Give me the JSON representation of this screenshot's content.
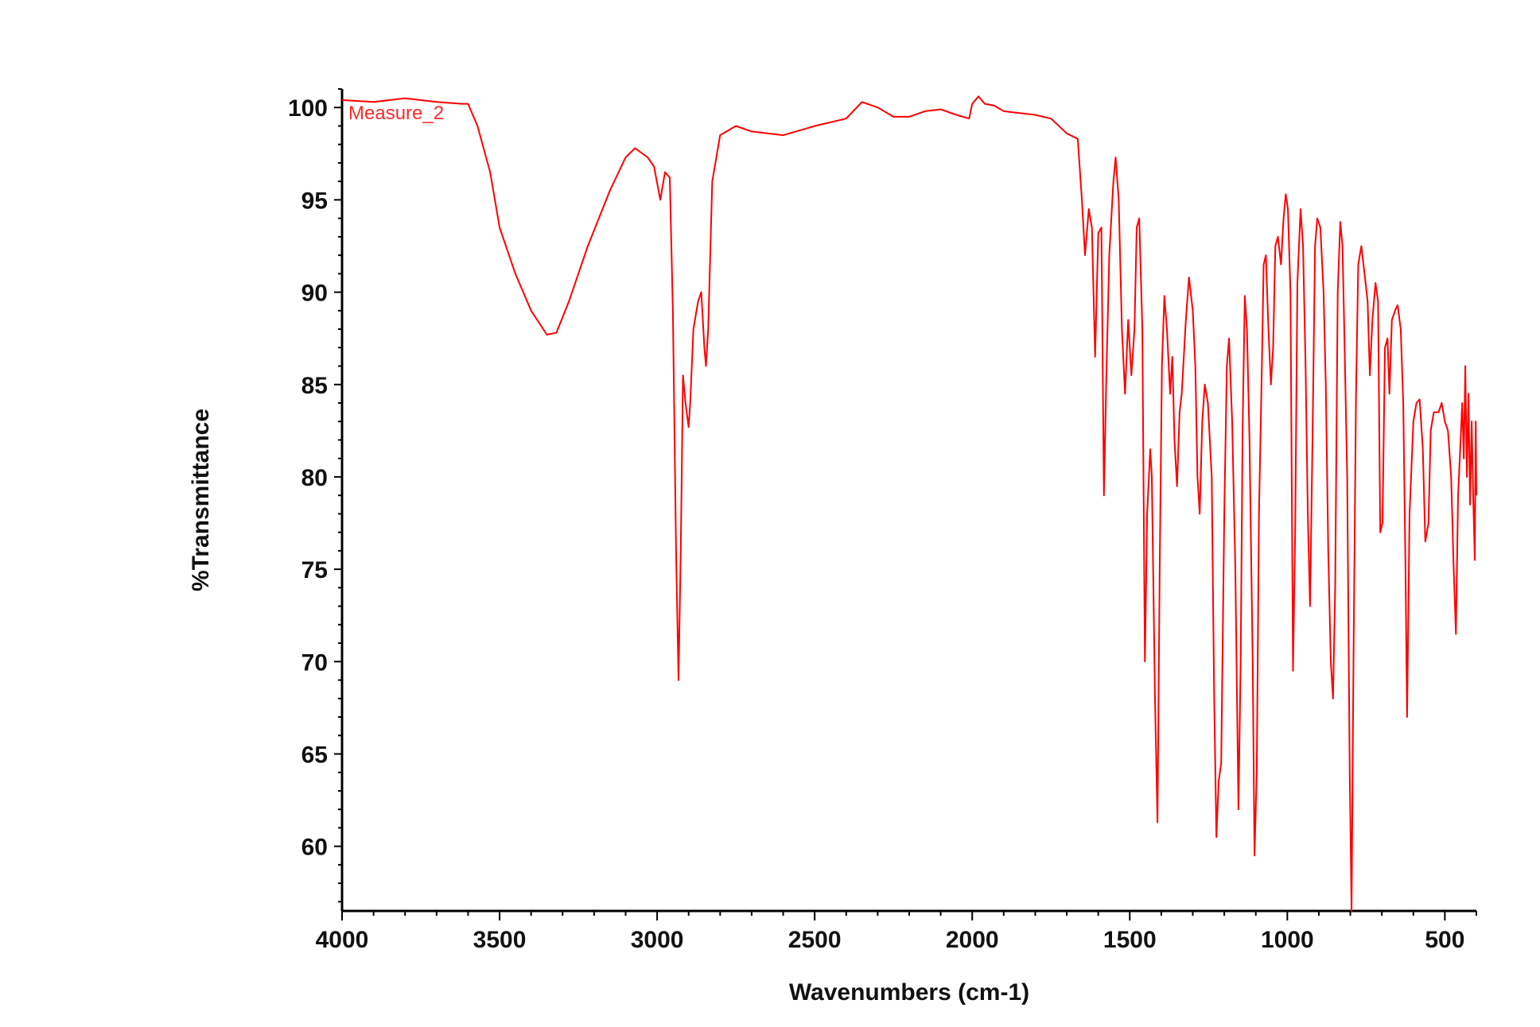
{
  "chart_data": {
    "type": "line",
    "title": "",
    "xlabel": "Wavenumbers (cm-1)",
    "ylabel": "%Transmittance",
    "xlim": [
      4000,
      400
    ],
    "ylim": [
      56.5,
      101
    ],
    "x_reversed": true,
    "x_ticks": [
      4000,
      3500,
      3000,
      2500,
      2000,
      1500,
      1000,
      500
    ],
    "y_ticks": [
      60,
      65,
      70,
      75,
      80,
      85,
      90,
      95,
      100
    ],
    "grid": false,
    "line_color": "#ff0000",
    "series": [
      {
        "name": "Measure_2",
        "points": [
          [
            4000,
            100.4
          ],
          [
            3900,
            100.3
          ],
          [
            3800,
            100.5
          ],
          [
            3700,
            100.3
          ],
          [
            3620,
            100.2
          ],
          [
            3600,
            100.2
          ],
          [
            3570,
            99.0
          ],
          [
            3530,
            96.5
          ],
          [
            3500,
            93.5
          ],
          [
            3450,
            91.0
          ],
          [
            3400,
            89.0
          ],
          [
            3350,
            87.7
          ],
          [
            3320,
            87.8
          ],
          [
            3280,
            89.5
          ],
          [
            3220,
            92.5
          ],
          [
            3150,
            95.5
          ],
          [
            3100,
            97.3
          ],
          [
            3070,
            97.8
          ],
          [
            3030,
            97.3
          ],
          [
            3010,
            96.8
          ],
          [
            2990,
            95.0
          ],
          [
            2975,
            96.5
          ],
          [
            2960,
            96.2
          ],
          [
            2950,
            89.0
          ],
          [
            2940,
            76.0
          ],
          [
            2932,
            69.0
          ],
          [
            2925,
            76.0
          ],
          [
            2918,
            85.5
          ],
          [
            2910,
            84.0
          ],
          [
            2900,
            82.7
          ],
          [
            2895,
            84.0
          ],
          [
            2885,
            88.0
          ],
          [
            2870,
            89.5
          ],
          [
            2860,
            90.0
          ],
          [
            2850,
            87.0
          ],
          [
            2845,
            86.0
          ],
          [
            2838,
            88.0
          ],
          [
            2825,
            96.0
          ],
          [
            2800,
            98.5
          ],
          [
            2750,
            99.0
          ],
          [
            2700,
            98.7
          ],
          [
            2600,
            98.5
          ],
          [
            2500,
            99.0
          ],
          [
            2400,
            99.4
          ],
          [
            2350,
            100.3
          ],
          [
            2300,
            100.0
          ],
          [
            2250,
            99.5
          ],
          [
            2200,
            99.5
          ],
          [
            2150,
            99.8
          ],
          [
            2100,
            99.9
          ],
          [
            2050,
            99.6
          ],
          [
            2010,
            99.4
          ],
          [
            2000,
            100.2
          ],
          [
            1980,
            100.6
          ],
          [
            1960,
            100.2
          ],
          [
            1930,
            100.1
          ],
          [
            1900,
            99.8
          ],
          [
            1850,
            99.7
          ],
          [
            1800,
            99.6
          ],
          [
            1750,
            99.4
          ],
          [
            1700,
            98.6
          ],
          [
            1665,
            98.3
          ],
          [
            1652,
            95.0
          ],
          [
            1642,
            92.0
          ],
          [
            1630,
            94.5
          ],
          [
            1620,
            93.5
          ],
          [
            1610,
            86.5
          ],
          [
            1600,
            93.2
          ],
          [
            1590,
            93.5
          ],
          [
            1582,
            79.0
          ],
          [
            1575,
            85.0
          ],
          [
            1565,
            92.0
          ],
          [
            1552,
            96.0
          ],
          [
            1545,
            97.3
          ],
          [
            1535,
            95.0
          ],
          [
            1525,
            88.0
          ],
          [
            1515,
            84.5
          ],
          [
            1505,
            88.5
          ],
          [
            1500,
            87.0
          ],
          [
            1495,
            85.5
          ],
          [
            1485,
            88.0
          ],
          [
            1478,
            93.5
          ],
          [
            1470,
            94.0
          ],
          [
            1460,
            88.0
          ],
          [
            1452,
            70.0
          ],
          [
            1445,
            78.0
          ],
          [
            1435,
            81.5
          ],
          [
            1430,
            80.0
          ],
          [
            1420,
            68.0
          ],
          [
            1412,
            61.3
          ],
          [
            1405,
            75.0
          ],
          [
            1398,
            86.0
          ],
          [
            1390,
            89.8
          ],
          [
            1382,
            88.0
          ],
          [
            1372,
            84.5
          ],
          [
            1365,
            86.5
          ],
          [
            1358,
            82.0
          ],
          [
            1350,
            79.5
          ],
          [
            1342,
            83.5
          ],
          [
            1335,
            84.5
          ],
          [
            1322,
            88.5
          ],
          [
            1312,
            90.8
          ],
          [
            1300,
            89.0
          ],
          [
            1292,
            86.0
          ],
          [
            1285,
            80.0
          ],
          [
            1278,
            78.0
          ],
          [
            1270,
            83.0
          ],
          [
            1262,
            85.0
          ],
          [
            1252,
            84.0
          ],
          [
            1240,
            80.0
          ],
          [
            1232,
            68.0
          ],
          [
            1225,
            60.5
          ],
          [
            1218,
            63.5
          ],
          [
            1210,
            64.5
          ],
          [
            1200,
            78.0
          ],
          [
            1192,
            86.0
          ],
          [
            1185,
            87.5
          ],
          [
            1175,
            83.0
          ],
          [
            1165,
            75.0
          ],
          [
            1155,
            62.0
          ],
          [
            1148,
            70.0
          ],
          [
            1142,
            82.5
          ],
          [
            1135,
            89.8
          ],
          [
            1128,
            88.0
          ],
          [
            1120,
            82.0
          ],
          [
            1110,
            70.0
          ],
          [
            1104,
            59.5
          ],
          [
            1097,
            64.0
          ],
          [
            1090,
            78.0
          ],
          [
            1082,
            85.0
          ],
          [
            1075,
            91.5
          ],
          [
            1068,
            92.0
          ],
          [
            1060,
            88.0
          ],
          [
            1052,
            85.0
          ],
          [
            1045,
            87.0
          ],
          [
            1038,
            92.5
          ],
          [
            1030,
            93.0
          ],
          [
            1020,
            91.5
          ],
          [
            1012,
            94.0
          ],
          [
            1005,
            95.3
          ],
          [
            998,
            94.5
          ],
          [
            990,
            90.0
          ],
          [
            982,
            69.5
          ],
          [
            975,
            77.0
          ],
          [
            968,
            90.5
          ],
          [
            958,
            94.5
          ],
          [
            950,
            92.5
          ],
          [
            942,
            86.0
          ],
          [
            935,
            78.0
          ],
          [
            928,
            73.0
          ],
          [
            920,
            82.0
          ],
          [
            912,
            92.5
          ],
          [
            905,
            94.0
          ],
          [
            895,
            93.5
          ],
          [
            885,
            90.0
          ],
          [
            878,
            85.0
          ],
          [
            870,
            76.0
          ],
          [
            862,
            70.0
          ],
          [
            855,
            68.0
          ],
          [
            848,
            74.0
          ],
          [
            840,
            90.0
          ],
          [
            832,
            93.8
          ],
          [
            825,
            92.5
          ],
          [
            818,
            87.0
          ],
          [
            810,
            80.0
          ],
          [
            802,
            64.0
          ],
          [
            796,
            56.5
          ],
          [
            790,
            70.0
          ],
          [
            782,
            84.5
          ],
          [
            775,
            91.5
          ],
          [
            765,
            92.5
          ],
          [
            755,
            91.0
          ],
          [
            745,
            89.5
          ],
          [
            738,
            85.5
          ],
          [
            730,
            88.5
          ],
          [
            720,
            90.5
          ],
          [
            712,
            89.5
          ],
          [
            705,
            77.0
          ],
          [
            698,
            77.5
          ],
          [
            690,
            87.0
          ],
          [
            682,
            87.5
          ],
          [
            676,
            84.5
          ],
          [
            668,
            88.5
          ],
          [
            658,
            89.0
          ],
          [
            650,
            89.3
          ],
          [
            640,
            88.0
          ],
          [
            632,
            84.0
          ],
          [
            625,
            75.0
          ],
          [
            620,
            67.0
          ],
          [
            612,
            78.0
          ],
          [
            600,
            83.0
          ],
          [
            590,
            84.0
          ],
          [
            580,
            84.2
          ],
          [
            570,
            81.5
          ],
          [
            562,
            76.5
          ],
          [
            552,
            77.5
          ],
          [
            545,
            82.5
          ],
          [
            535,
            83.5
          ],
          [
            520,
            83.5
          ],
          [
            510,
            84.0
          ],
          [
            500,
            83.0
          ],
          [
            490,
            82.5
          ],
          [
            480,
            80.0
          ],
          [
            472,
            75.0
          ],
          [
            465,
            71.5
          ],
          [
            458,
            79.0
          ],
          [
            450,
            82.0
          ],
          [
            445,
            84.0
          ],
          [
            440,
            81.0
          ],
          [
            435,
            86.0
          ],
          [
            430,
            80.0
          ],
          [
            425,
            84.5
          ],
          [
            420,
            78.5
          ],
          [
            415,
            83.0
          ],
          [
            410,
            79.0
          ],
          [
            405,
            75.5
          ],
          [
            402,
            83.0
          ],
          [
            400,
            79.0
          ]
        ]
      }
    ]
  }
}
